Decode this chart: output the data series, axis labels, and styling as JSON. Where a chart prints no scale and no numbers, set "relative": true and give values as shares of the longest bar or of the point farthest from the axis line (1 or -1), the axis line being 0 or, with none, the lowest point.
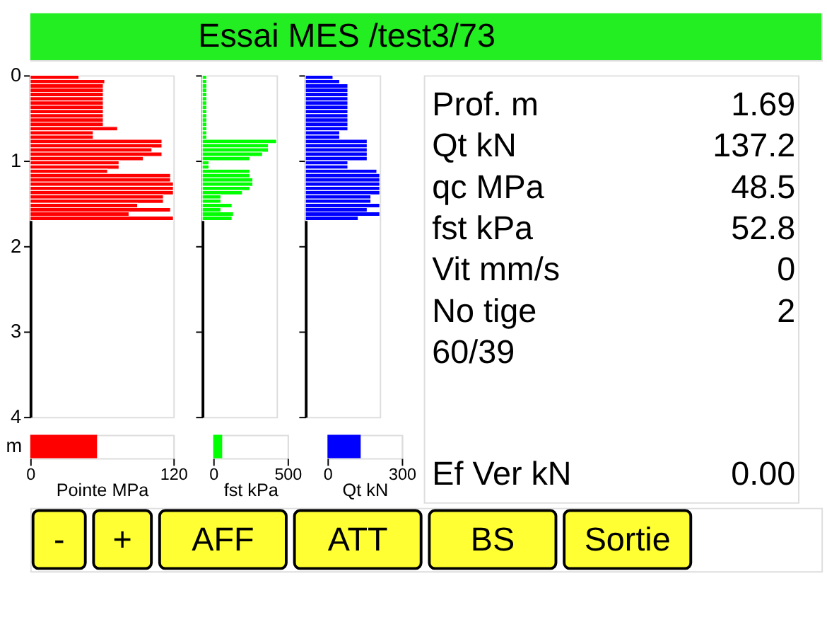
{
  "chart_data": [
    {
      "type": "bar",
      "orientation": "horizontal",
      "relative": true,
      "x": [
        0.025,
        0.075,
        0.125,
        0.175,
        0.225,
        0.275,
        0.325,
        0.375,
        0.425,
        0.475,
        0.525,
        0.575,
        0.625,
        0.675,
        0.725,
        0.775,
        0.825,
        0.875,
        0.925,
        0.975,
        1.025,
        1.075,
        1.125,
        1.175,
        1.225,
        1.275,
        1.325,
        1.375,
        1.425,
        1.475,
        1.525,
        1.575,
        1.625,
        1.675
      ],
      "values": [
        0.34,
        0.52,
        0.51,
        0.51,
        0.51,
        0.51,
        0.51,
        0.51,
        0.51,
        0.51,
        0.51,
        0.51,
        0.61,
        0.44,
        0.44,
        0.92,
        0.92,
        0.85,
        0.92,
        0.79,
        0.62,
        0.62,
        0.54,
        0.98,
        0.98,
        1,
        1,
        1,
        0.93,
        0.93,
        0.75,
        0.98,
        0.69,
        1
      ],
      "color": "#ff0000",
      "ylim": [
        4,
        0
      ],
      "yticks": [
        0,
        1,
        2,
        3,
        4
      ],
      "tick_labels": "y"
    },
    {
      "type": "bar",
      "orientation": "horizontal",
      "relative": true,
      "x": [
        0.025,
        0.075,
        0.125,
        0.175,
        0.225,
        0.275,
        0.325,
        0.375,
        0.425,
        0.475,
        0.525,
        0.575,
        0.625,
        0.675,
        0.725,
        0.775,
        0.825,
        0.875,
        0.925,
        0.975,
        1.025,
        1.075,
        1.125,
        1.175,
        1.225,
        1.275,
        1.325,
        1.375,
        1.425,
        1.475,
        1.525,
        1.575,
        1.625,
        1.675
      ],
      "values": [
        0.06,
        0.06,
        0.06,
        0.06,
        0.06,
        0.06,
        0.06,
        0.06,
        0.06,
        0.06,
        0.06,
        0.06,
        0.06,
        0.06,
        0.06,
        1,
        0.89,
        0.89,
        0.81,
        0.64,
        0.09,
        0.09,
        0.64,
        0.64,
        0.68,
        0.68,
        0.64,
        0.54,
        0.25,
        0.25,
        0.4,
        0.25,
        0.42,
        0.4
      ],
      "color": "#00ff00",
      "ylim": [
        4,
        0
      ],
      "yticks": [
        0,
        1,
        2,
        3,
        4
      ],
      "tick_labels": false
    },
    {
      "type": "bar",
      "orientation": "horizontal",
      "relative": true,
      "x": [
        0.025,
        0.075,
        0.125,
        0.175,
        0.225,
        0.275,
        0.325,
        0.375,
        0.425,
        0.475,
        0.525,
        0.575,
        0.625,
        0.675,
        0.725,
        0.775,
        0.825,
        0.875,
        0.925,
        0.975,
        1.025,
        1.075,
        1.125,
        1.175,
        1.225,
        1.275,
        1.325,
        1.375,
        1.425,
        1.475,
        1.525,
        1.575,
        1.625,
        1.675
      ],
      "values": [
        0.37,
        0.46,
        0.57,
        0.57,
        0.57,
        0.57,
        0.57,
        0.57,
        0.57,
        0.57,
        0.57,
        0.57,
        0.57,
        0.46,
        0.46,
        0.83,
        0.83,
        0.83,
        0.83,
        0.83,
        0.57,
        0.57,
        0.96,
        1,
        1,
        1,
        1,
        1,
        0.88,
        0.88,
        1,
        0.83,
        1,
        0.71
      ],
      "color": "#0000ff",
      "ylim": [
        4,
        0
      ],
      "yticks": [
        0,
        1,
        2,
        3,
        4
      ],
      "tick_labels": false
    },
    {
      "type": "bar",
      "orientation": "horizontal",
      "categories": [
        null
      ],
      "values": [
        56
      ],
      "color": "#ff0000",
      "xlim": [
        0,
        120
      ],
      "xticks": [
        0,
        120
      ],
      "xlabel": "Pointe MPa",
      "ylabel": "m"
    },
    {
      "type": "bar",
      "orientation": "horizontal",
      "categories": [
        null
      ],
      "values": [
        60
      ],
      "color": "#00ff00",
      "xlim": [
        0,
        500
      ],
      "xticks": [
        0,
        500
      ],
      "xlabel": "fst kPa"
    },
    {
      "type": "bar",
      "orientation": "horizontal",
      "categories": [
        null
      ],
      "values": [
        134
      ],
      "color": "#0000ff",
      "xlim": [
        0,
        300
      ],
      "xticks": [
        0,
        300
      ],
      "xlabel": "Qt kN"
    },
    {
      "type": "other",
      "title": "Essai MES /test3/73",
      "categories": [
        "Prof. m",
        "Qt kN",
        "qc MPa",
        "fst kPa",
        "Vit mm/s",
        "No tige",
        "60/39",
        "Ef Ver kN"
      ],
      "values": [
        1.69,
        137.2,
        48.5,
        52.8,
        0,
        2,
        null,
        0
      ],
      "value_labels": [
        "1.69",
        "137.2",
        "48.5",
        "52.8",
        "0",
        "2",
        null,
        "0.00"
      ],
      "annotations": [
        "-",
        "+",
        "AFF",
        "ATT",
        "BS",
        "Sortie"
      ]
    }
  ]
}
